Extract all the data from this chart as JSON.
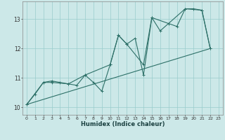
{
  "xlabel": "Humidex (Indice chaleur)",
  "bg_color": "#cce8e8",
  "grid_color": "#99cccc",
  "line_color": "#2d7068",
  "xlim": [
    -0.5,
    23.5
  ],
  "ylim": [
    9.75,
    13.6
  ],
  "yticks": [
    10,
    11,
    12,
    13
  ],
  "xticks": [
    0,
    1,
    2,
    3,
    4,
    5,
    6,
    7,
    8,
    9,
    10,
    11,
    12,
    13,
    14,
    15,
    16,
    17,
    18,
    19,
    20,
    21,
    22,
    23
  ],
  "series1": [
    [
      0,
      10.1
    ],
    [
      1,
      10.45
    ],
    [
      2,
      10.85
    ],
    [
      3,
      10.9
    ],
    [
      4,
      10.85
    ],
    [
      5,
      10.8
    ],
    [
      6,
      10.75
    ],
    [
      7,
      11.1
    ],
    [
      8,
      10.85
    ],
    [
      9,
      10.55
    ],
    [
      10,
      11.45
    ],
    [
      11,
      12.45
    ],
    [
      12,
      12.15
    ],
    [
      13,
      12.35
    ],
    [
      14,
      11.1
    ],
    [
      15,
      13.05
    ],
    [
      16,
      12.6
    ],
    [
      17,
      12.85
    ],
    [
      18,
      12.75
    ],
    [
      19,
      13.35
    ],
    [
      20,
      13.35
    ],
    [
      21,
      13.3
    ],
    [
      22,
      12.0
    ]
  ],
  "series2": [
    [
      0,
      10.1
    ],
    [
      2,
      10.85
    ],
    [
      3,
      10.85
    ],
    [
      5,
      10.8
    ],
    [
      7,
      11.1
    ],
    [
      10,
      11.45
    ],
    [
      11,
      12.45
    ],
    [
      12,
      12.15
    ],
    [
      14,
      11.45
    ],
    [
      15,
      13.05
    ],
    [
      17,
      12.85
    ],
    [
      19,
      13.35
    ],
    [
      21,
      13.3
    ],
    [
      22,
      12.0
    ]
  ],
  "series3": [
    [
      0,
      10.1
    ],
    [
      22,
      12.0
    ]
  ]
}
